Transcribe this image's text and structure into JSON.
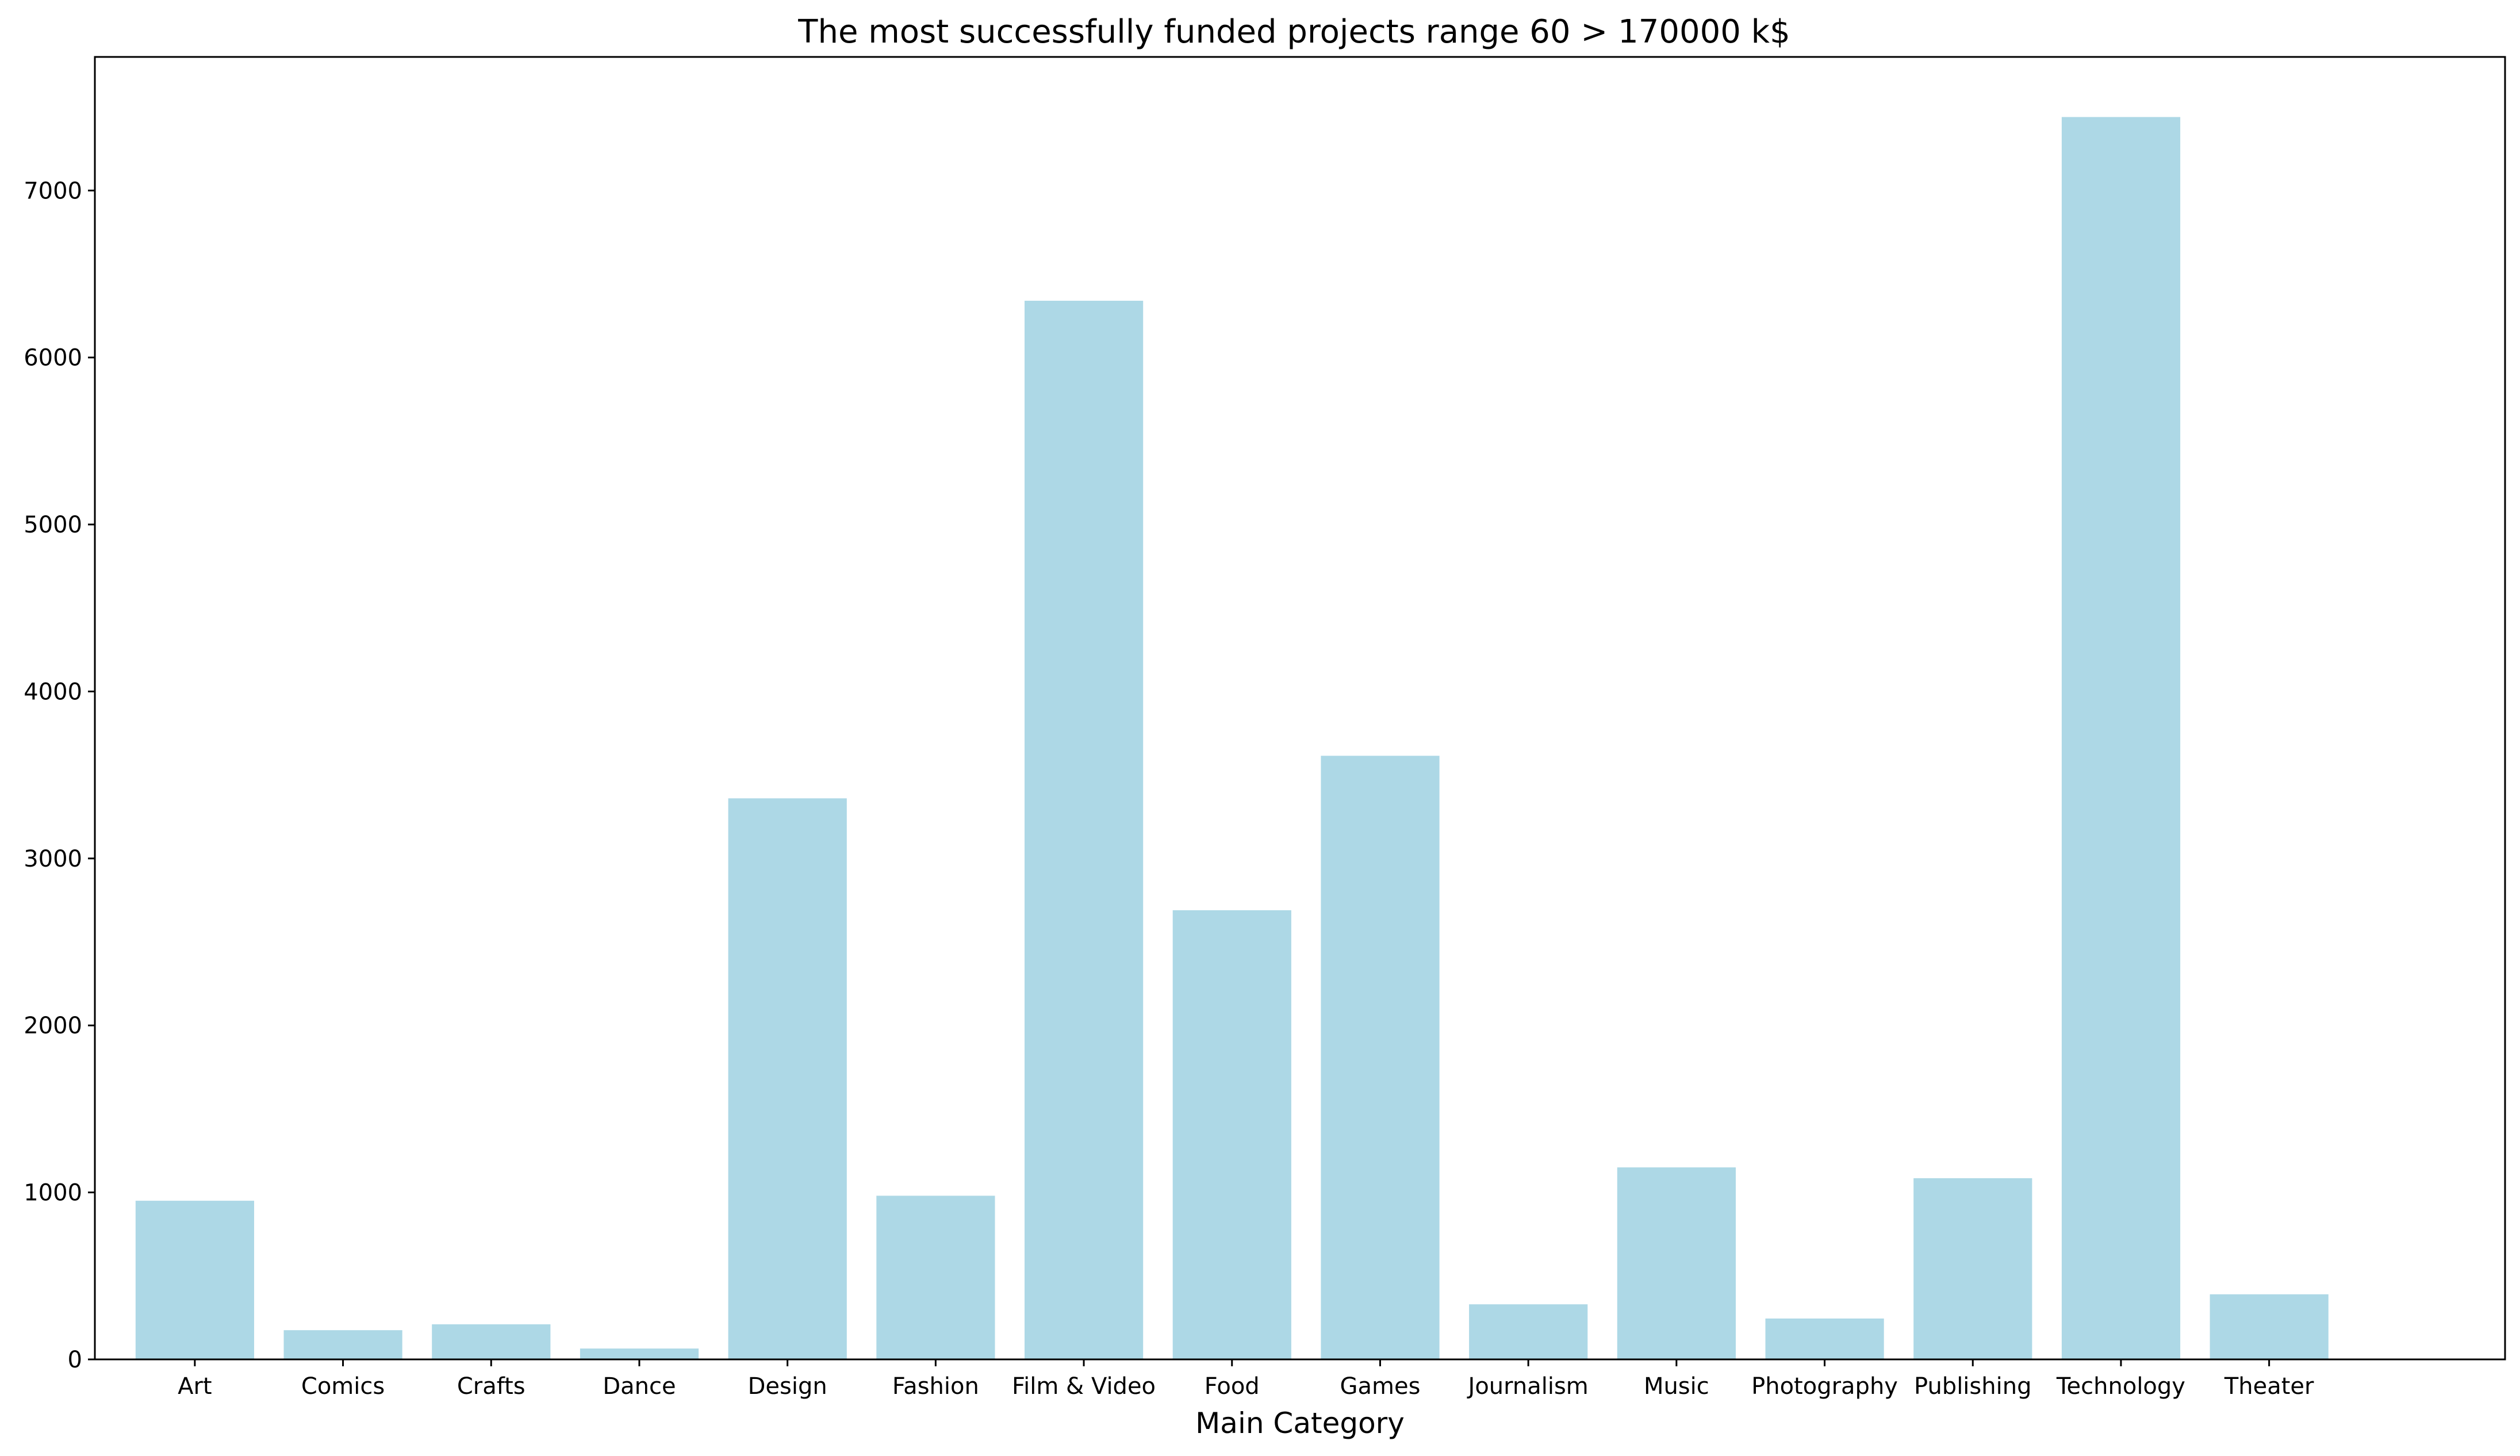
{
  "chart_data": {
    "type": "bar",
    "title": "The most successfully funded projects range 60 > 170000 k$",
    "xlabel": "Main Category",
    "ylabel": "",
    "categories": [
      "Art",
      "Comics",
      "Crafts",
      "Dance",
      "Design",
      "Fashion",
      "Film & Video",
      "Food",
      "Games",
      "Journalism",
      "Music",
      "Photography",
      "Publishing",
      "Technology",
      "Theater"
    ],
    "values": [
      950,
      175,
      210,
      65,
      3360,
      980,
      6340,
      2690,
      3615,
      330,
      1150,
      245,
      1085,
      7440,
      390
    ],
    "ylim": [
      0,
      7800
    ],
    "yticks": [
      0,
      1000,
      2000,
      3000,
      4000,
      5000,
      6000,
      7000
    ],
    "bar_color": "#add8e6",
    "grid": false,
    "legend": "none"
  }
}
